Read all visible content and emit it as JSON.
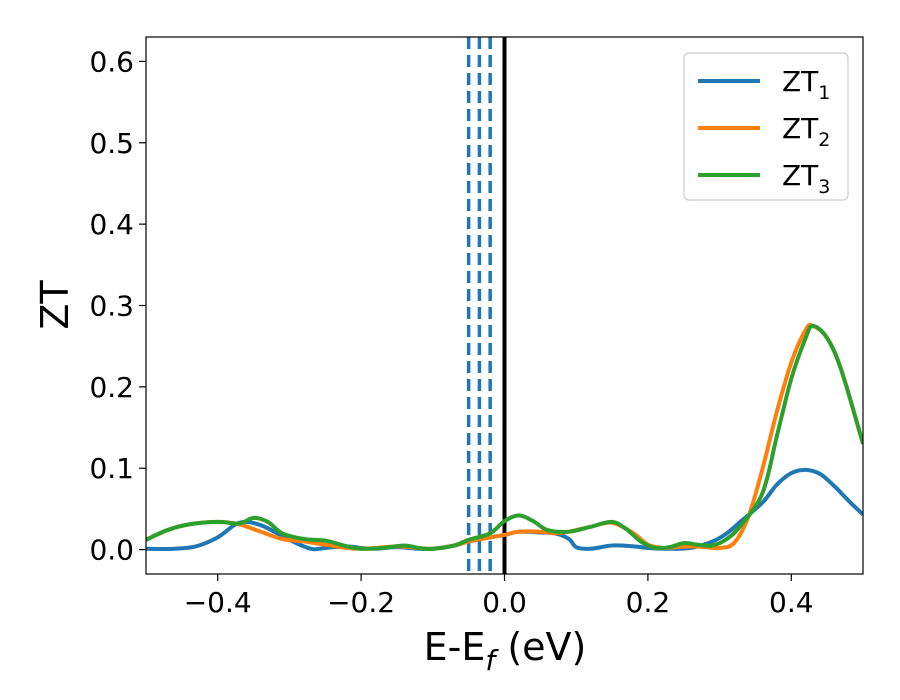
{
  "chart_data": {
    "type": "line",
    "xlabel": "E-E",
    "xlabel_sub": "f",
    "xlabel_unit": " (eV)",
    "ylabel": "ZT",
    "xlim": [
      -0.5,
      0.5
    ],
    "ylim": [
      -0.03,
      0.63
    ],
    "grid": false,
    "legend_position": "top-right",
    "x_ticks": [
      {
        "value": -0.4,
        "label": "−0.4"
      },
      {
        "value": -0.2,
        "label": "−0.2"
      },
      {
        "value": 0.0,
        "label": "0.0"
      },
      {
        "value": 0.2,
        "label": "0.2"
      },
      {
        "value": 0.4,
        "label": "0.4"
      }
    ],
    "y_ticks": [
      {
        "value": 0.0,
        "label": "0.0"
      },
      {
        "value": 0.1,
        "label": "0.1"
      },
      {
        "value": 0.2,
        "label": "0.2"
      },
      {
        "value": 0.3,
        "label": "0.3"
      },
      {
        "value": 0.4,
        "label": "0.4"
      },
      {
        "value": 0.5,
        "label": "0.5"
      },
      {
        "value": 0.6,
        "label": "0.6"
      }
    ],
    "vertical_lines": [
      {
        "x": -0.05,
        "style": "dashed",
        "color": "#1f77b4"
      },
      {
        "x": -0.035,
        "style": "dashed",
        "color": "#1f77b4"
      },
      {
        "x": -0.02,
        "style": "dashed",
        "color": "#1f77b4"
      },
      {
        "x": 0.0,
        "style": "solid",
        "color": "#000000"
      }
    ],
    "series": [
      {
        "name": "ZT",
        "name_sub": "1",
        "color": "#1f77b4",
        "x": [
          -0.5,
          -0.46,
          -0.43,
          -0.4,
          -0.37,
          -0.34,
          -0.3,
          -0.27,
          -0.25,
          -0.22,
          -0.2,
          -0.18,
          -0.15,
          -0.12,
          -0.1,
          -0.07,
          -0.05,
          -0.02,
          0.0,
          0.02,
          0.05,
          0.07,
          0.09,
          0.1,
          0.12,
          0.15,
          0.18,
          0.2,
          0.23,
          0.26,
          0.29,
          0.31,
          0.33,
          0.36,
          0.38,
          0.4,
          0.42,
          0.44,
          0.46,
          0.48,
          0.5
        ],
        "y": [
          0.001,
          0.001,
          0.004,
          0.015,
          0.033,
          0.03,
          0.012,
          0.001,
          0.002,
          0.004,
          0.002,
          0.001,
          0.003,
          0.001,
          0.001,
          0.005,
          0.01,
          0.015,
          0.018,
          0.022,
          0.021,
          0.02,
          0.013,
          0.003,
          0.001,
          0.005,
          0.004,
          0.002,
          0.001,
          0.002,
          0.01,
          0.02,
          0.035,
          0.058,
          0.08,
          0.094,
          0.098,
          0.093,
          0.078,
          0.06,
          0.043
        ]
      },
      {
        "name": "ZT",
        "name_sub": "2",
        "color": "#ff7f0e",
        "x": [
          -0.5,
          -0.47,
          -0.44,
          -0.4,
          -0.37,
          -0.34,
          -0.31,
          -0.28,
          -0.25,
          -0.22,
          -0.2,
          -0.18,
          -0.15,
          -0.12,
          -0.1,
          -0.07,
          -0.05,
          -0.02,
          0.0,
          0.02,
          0.05,
          0.07,
          0.09,
          0.12,
          0.15,
          0.18,
          0.2,
          0.22,
          0.24,
          0.26,
          0.28,
          0.3,
          0.32,
          0.34,
          0.36,
          0.38,
          0.4,
          0.42,
          0.43,
          0.45,
          0.47,
          0.5
        ],
        "y": [
          0.012,
          0.024,
          0.031,
          0.034,
          0.031,
          0.022,
          0.013,
          0.01,
          0.006,
          0.002,
          0.001,
          0.002,
          0.004,
          0.002,
          0.001,
          0.005,
          0.01,
          0.015,
          0.018,
          0.022,
          0.022,
          0.02,
          0.022,
          0.028,
          0.033,
          0.02,
          0.006,
          0.002,
          0.003,
          0.004,
          0.003,
          0.002,
          0.008,
          0.04,
          0.1,
          0.17,
          0.23,
          0.27,
          0.275,
          0.26,
          0.22,
          0.13
        ]
      },
      {
        "name": "ZT",
        "name_sub": "3",
        "color": "#2ca02c",
        "x": [
          -0.5,
          -0.47,
          -0.44,
          -0.4,
          -0.37,
          -0.35,
          -0.33,
          -0.31,
          -0.28,
          -0.25,
          -0.22,
          -0.2,
          -0.17,
          -0.14,
          -0.12,
          -0.1,
          -0.07,
          -0.05,
          -0.02,
          0.0,
          0.02,
          0.04,
          0.06,
          0.09,
          0.12,
          0.15,
          0.17,
          0.19,
          0.21,
          0.23,
          0.25,
          0.27,
          0.29,
          0.31,
          0.33,
          0.36,
          0.38,
          0.4,
          0.42,
          0.43,
          0.45,
          0.47,
          0.5
        ],
        "y": [
          0.012,
          0.024,
          0.031,
          0.034,
          0.032,
          0.039,
          0.034,
          0.02,
          0.013,
          0.011,
          0.004,
          0.001,
          0.002,
          0.005,
          0.002,
          0.001,
          0.005,
          0.012,
          0.02,
          0.035,
          0.042,
          0.035,
          0.024,
          0.022,
          0.028,
          0.034,
          0.025,
          0.01,
          0.002,
          0.003,
          0.008,
          0.006,
          0.005,
          0.013,
          0.03,
          0.07,
          0.14,
          0.21,
          0.26,
          0.275,
          0.26,
          0.22,
          0.13
        ]
      }
    ]
  }
}
